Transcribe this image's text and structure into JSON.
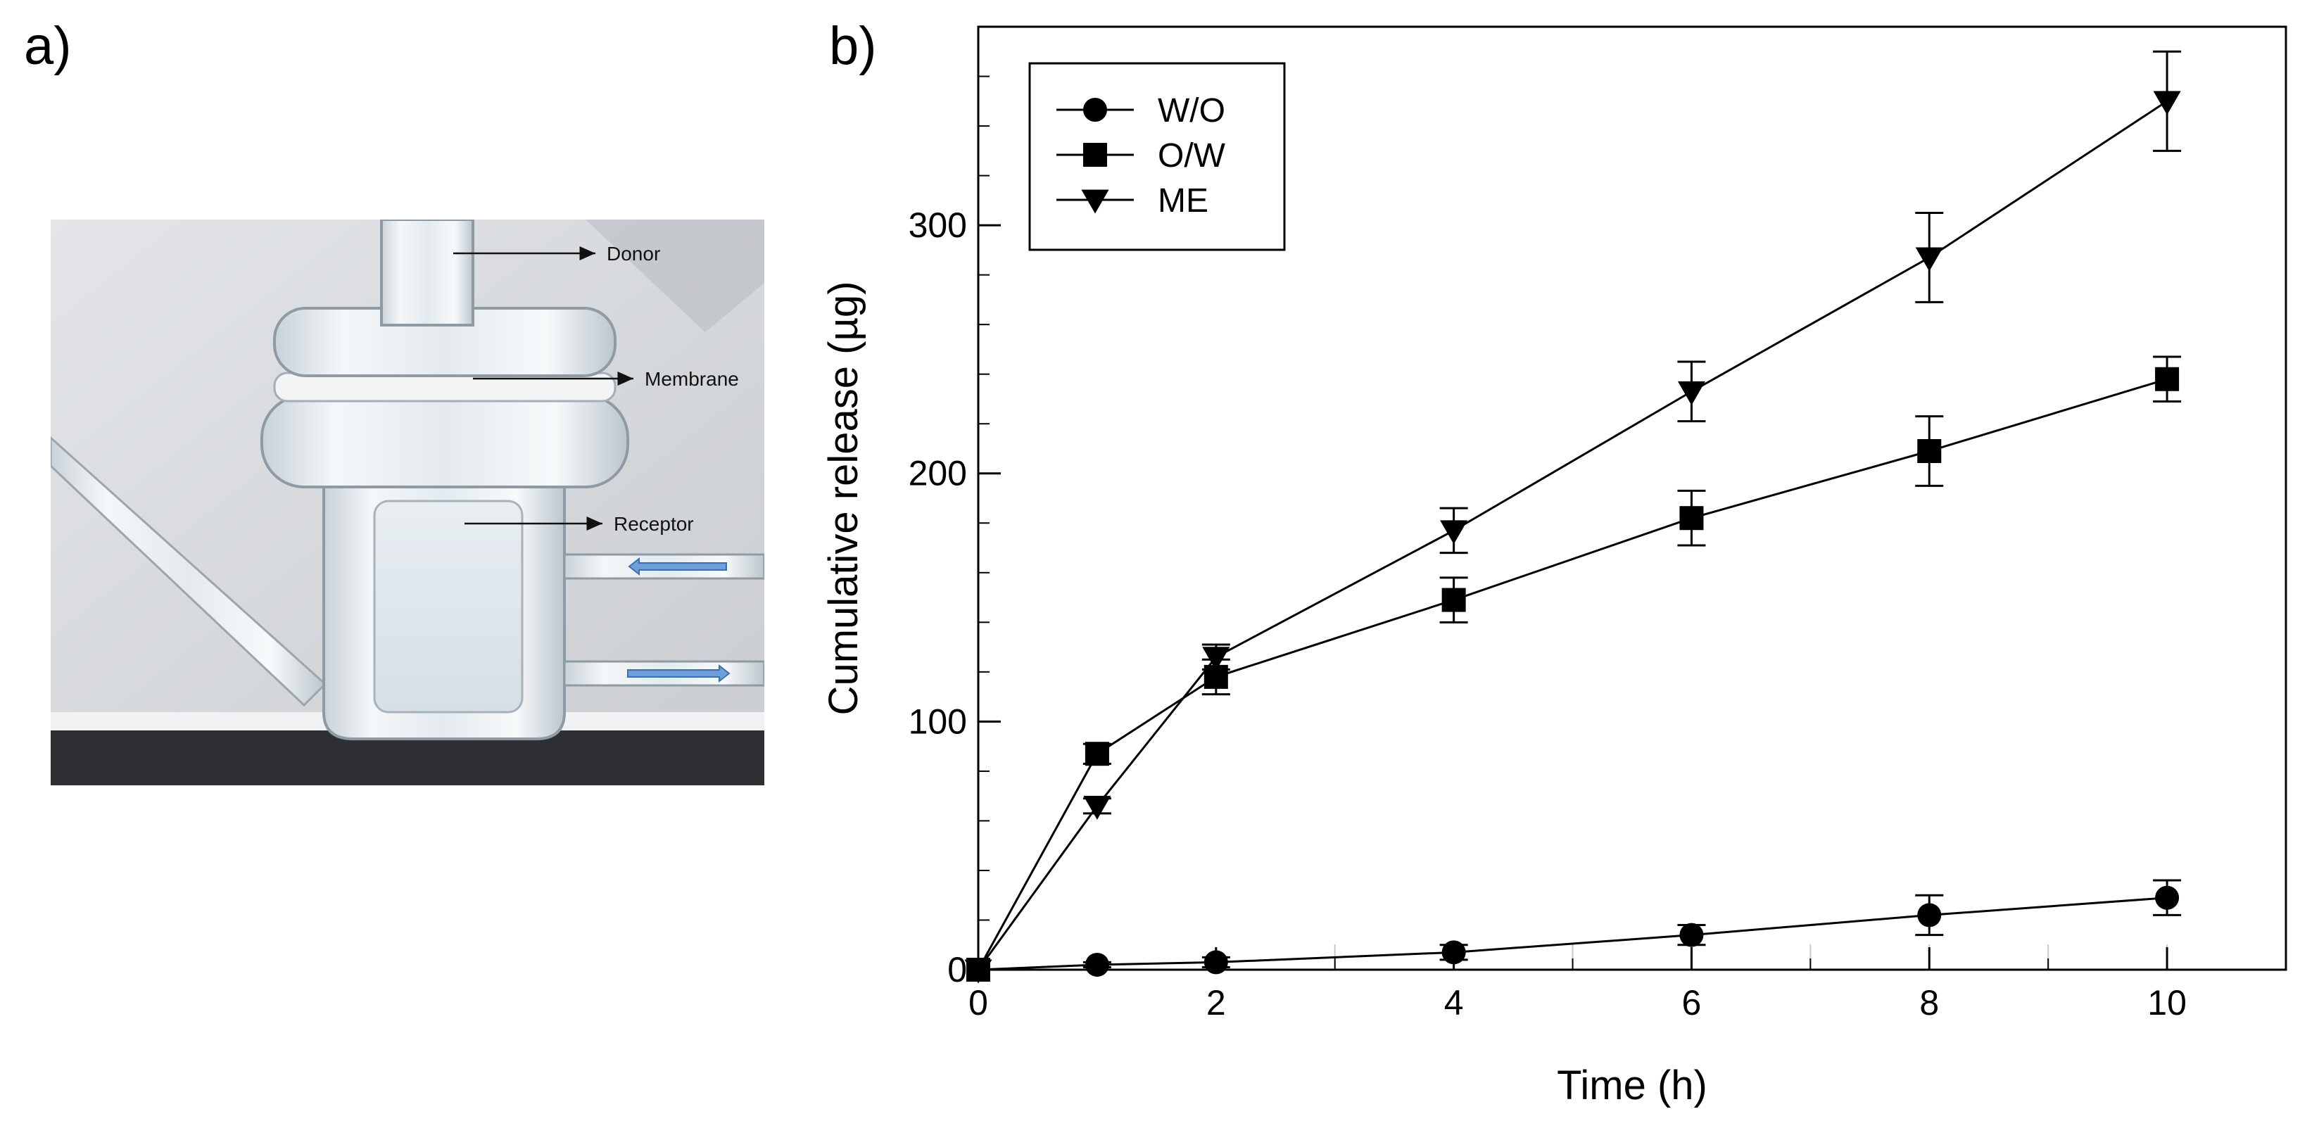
{
  "panels": {
    "a_label": "a)",
    "b_label": "b)"
  },
  "photo": {
    "callouts": {
      "donor": "Donor",
      "membrane": "Membrane",
      "receptor": "Receptor"
    },
    "colors": {
      "background": "#d7d9dc",
      "floor": "#2e2f33",
      "glass": "#eef3f6",
      "arrow": "#6f9fd8"
    }
  },
  "chart_data": {
    "type": "line",
    "xlabel": "Time (h)",
    "ylabel": "Cumulative release (µg)",
    "xlim": [
      0,
      11
    ],
    "ylim": [
      0,
      380
    ],
    "xticks": [
      0,
      2,
      4,
      6,
      8,
      10
    ],
    "yticks": [
      0,
      100,
      200,
      300
    ],
    "legend_position": "top-left",
    "series": [
      {
        "name": "W/O",
        "marker": "circle",
        "x": [
          0,
          1,
          2,
          4,
          6,
          8,
          10
        ],
        "values": [
          0,
          2,
          3,
          7,
          14,
          22,
          29
        ],
        "errors": [
          0,
          1,
          2,
          3,
          4,
          8,
          7
        ]
      },
      {
        "name": "O/W",
        "marker": "square",
        "x": [
          0,
          1,
          2,
          4,
          6,
          8,
          10
        ],
        "values": [
          0,
          87,
          118,
          149,
          182,
          209,
          238
        ],
        "errors": [
          0,
          4,
          7,
          9,
          11,
          14,
          9
        ]
      },
      {
        "name": "ME",
        "marker": "triangle-down",
        "x": [
          0,
          1,
          2,
          4,
          6,
          8,
          10
        ],
        "values": [
          0,
          66,
          126,
          177,
          233,
          287,
          350
        ],
        "errors": [
          0,
          3,
          5,
          9,
          12,
          18,
          20
        ]
      }
    ]
  }
}
